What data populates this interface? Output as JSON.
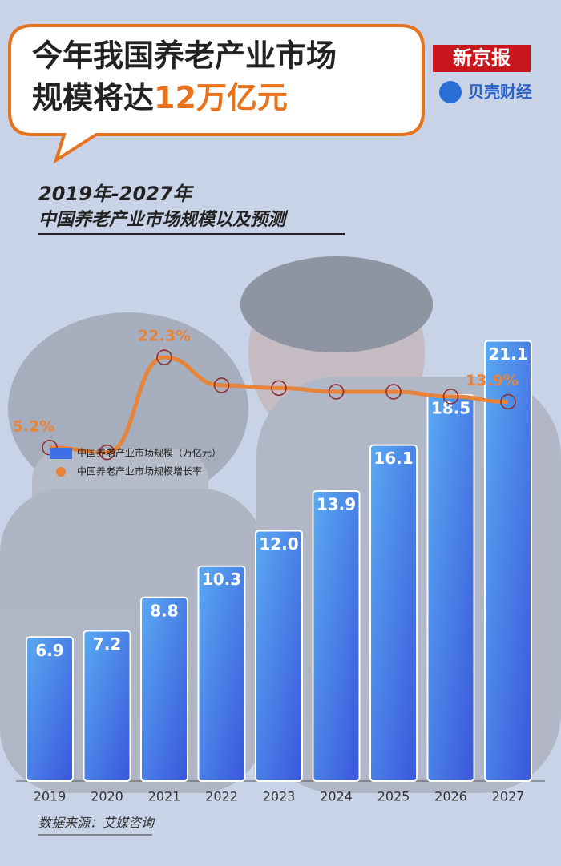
{
  "chart_data": {
    "type": "bar-line",
    "title": [
      "今年我国养老产业市场",
      "规模将达",
      "12万亿元"
    ],
    "subtitle": [
      "2019年-2027年",
      "中国养老产业市场规模以及预测"
    ],
    "source": "数据来源：艾媒咨询",
    "logos": [
      "新京报",
      "贝壳财经"
    ],
    "categories": [
      "2019",
      "2020",
      "2021",
      "2022",
      "2023",
      "2024",
      "2025",
      "2026",
      "2027"
    ],
    "series": [
      {
        "name": "中国养老产业市场规模（万亿元）",
        "type": "bar",
        "color": "#3f6fe6",
        "values": [
          6.9,
          7.2,
          8.8,
          10.3,
          12.0,
          13.9,
          16.1,
          18.5,
          21.1
        ],
        "value_labels": [
          "6.9",
          "7.2",
          "8.8",
          "10.3",
          "12.0",
          "13.9",
          "16.1",
          "18.5",
          "21.1"
        ]
      },
      {
        "name": "中国养老产业市场规模增长率",
        "type": "line",
        "axis": "y2",
        "color": "#e8833a",
        "values": [
          5.2,
          4.3,
          22.3,
          17.0,
          16.5,
          15.8,
          15.8,
          14.9,
          13.9
        ],
        "value_labels": [
          "5.2%",
          null,
          "22.3%",
          null,
          null,
          null,
          null,
          null,
          "13.9%"
        ]
      }
    ],
    "ylim": [
      0,
      22
    ],
    "y2lim": [
      -58,
      29
    ]
  }
}
